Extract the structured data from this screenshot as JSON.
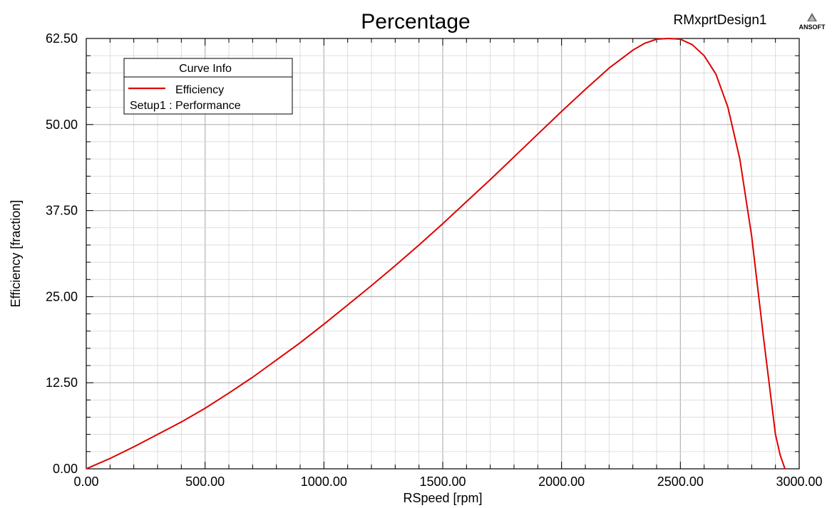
{
  "header": {
    "design_name": "RMxprtDesign1",
    "logo_text": "ANSOFT"
  },
  "legend": {
    "title": "Curve Info",
    "entries": [
      {
        "name": "Efficiency",
        "subtitle": "Setup1 : Performance",
        "color": "#e00000"
      }
    ]
  },
  "chart_data": {
    "type": "line",
    "title": "Percentage",
    "xlabel": "RSpeed [rpm]",
    "ylabel": "Efficiency [fraction]",
    "xlim": [
      0,
      3000
    ],
    "ylim": [
      0,
      62.5
    ],
    "xticks": [
      "0.00",
      "500.00",
      "1000.00",
      "1500.00",
      "2000.00",
      "2500.00",
      "3000.00"
    ],
    "xtick_values": [
      0,
      500,
      1000,
      1500,
      2000,
      2500,
      3000
    ],
    "yticks": [
      "0.00",
      "12.50",
      "25.00",
      "37.50",
      "50.00",
      "62.50"
    ],
    "ytick_values": [
      0,
      12.5,
      25,
      37.5,
      50,
      62.5
    ],
    "grid": true,
    "legend_position": "top-left",
    "series": [
      {
        "name": "Efficiency",
        "color": "#e00000",
        "x": [
          0,
          100,
          200,
          300,
          400,
          500,
          600,
          700,
          800,
          900,
          1000,
          1100,
          1200,
          1300,
          1400,
          1500,
          1600,
          1700,
          1800,
          1900,
          2000,
          2100,
          2200,
          2300,
          2350,
          2400,
          2450,
          2500,
          2550,
          2600,
          2650,
          2700,
          2750,
          2800,
          2850,
          2900,
          2920,
          2940
        ],
        "y": [
          0,
          1.5,
          3.2,
          5.0,
          6.8,
          8.8,
          11.0,
          13.3,
          15.8,
          18.3,
          21.0,
          23.8,
          26.6,
          29.5,
          32.5,
          35.6,
          38.8,
          42.0,
          45.3,
          48.6,
          51.9,
          55.1,
          58.2,
          60.8,
          61.8,
          62.4,
          62.5,
          62.4,
          61.6,
          60.0,
          57.3,
          52.5,
          45.0,
          33.8,
          19.0,
          5.0,
          2.0,
          0.0
        ]
      }
    ]
  }
}
